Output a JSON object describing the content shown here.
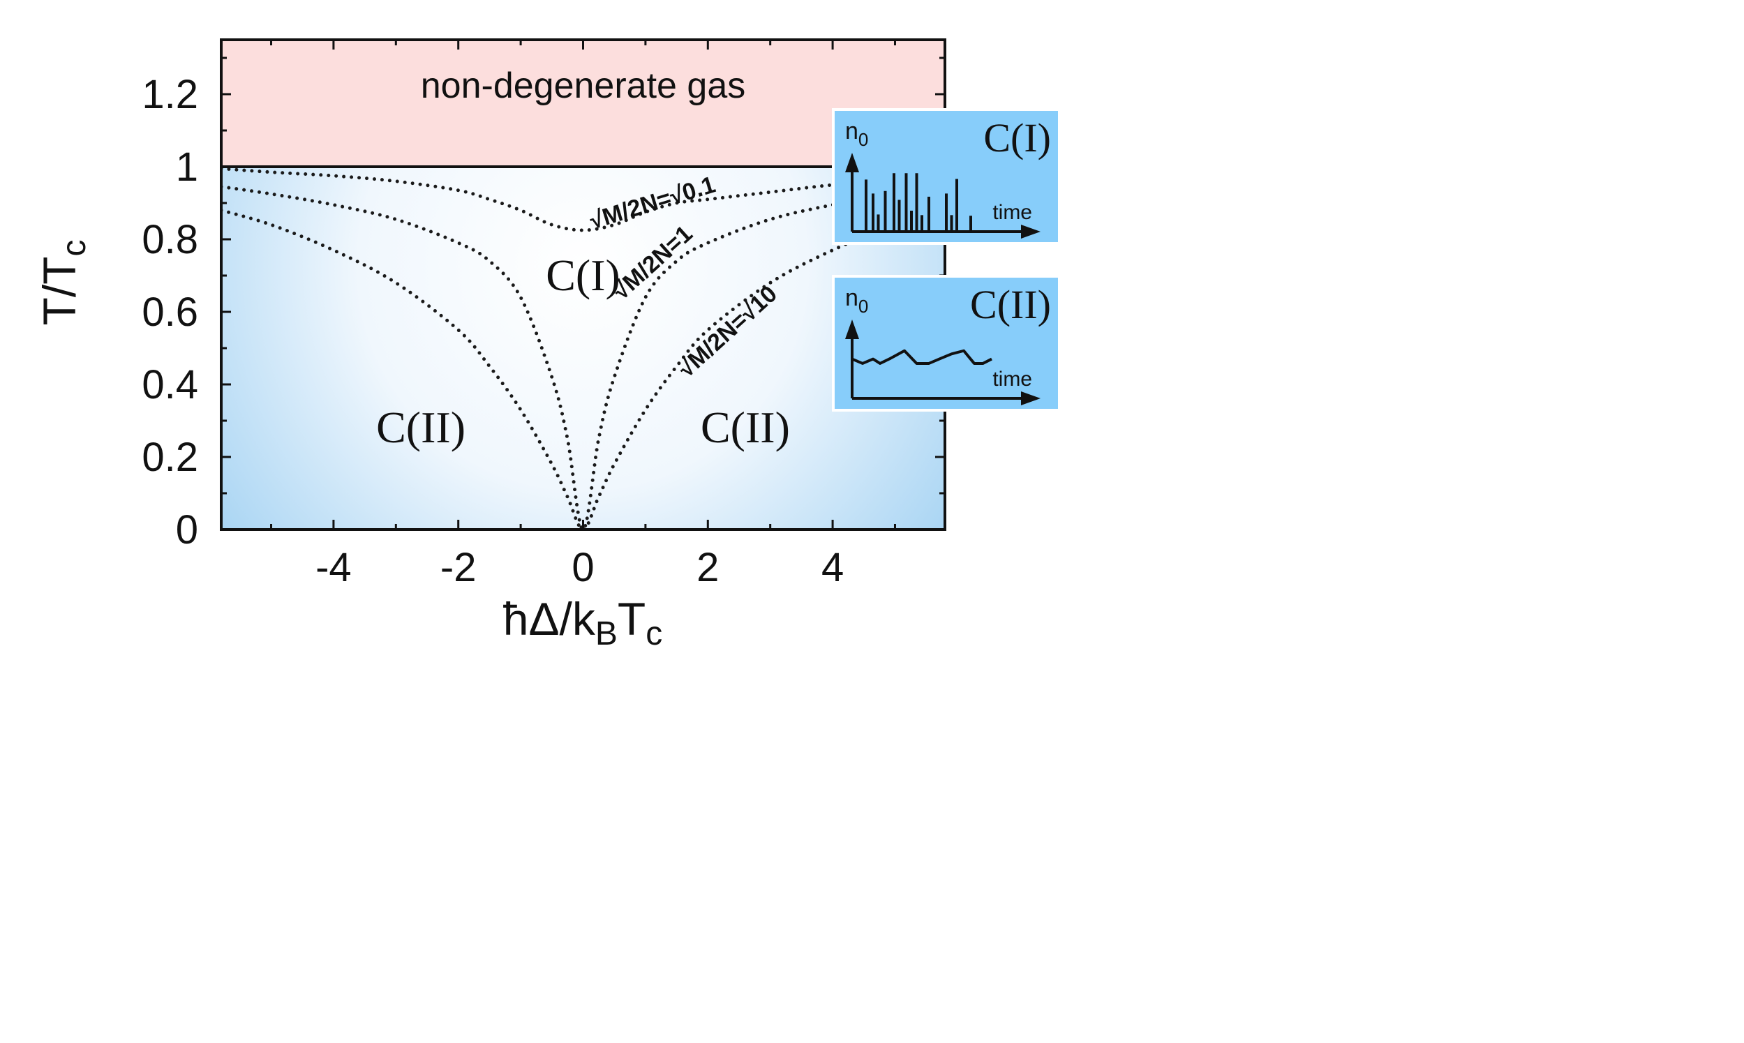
{
  "chart_data": {
    "type": "line",
    "xlabel": "ħΔ/k_BT_c",
    "ylabel": "T/T_c",
    "xlim": [
      -5.8,
      5.8
    ],
    "ylim": [
      0,
      1.35
    ],
    "xticks": [
      -4,
      -2,
      0,
      2,
      4
    ],
    "yticks": [
      0,
      0.2,
      0.4,
      0.6,
      0.8,
      1,
      1.2
    ],
    "xtick_labels": [
      "-4",
      "-2",
      "0",
      "2",
      "4"
    ],
    "ytick_labels": [
      "0",
      "0.2",
      "0.4",
      "0.6",
      "0.8",
      "1",
      "1.2"
    ],
    "boundary": {
      "y": 1,
      "style": "solid"
    },
    "regions": [
      {
        "label": "non-degenerate gas",
        "x": 0,
        "y": 1.19,
        "color": "#fcdedd"
      },
      {
        "label": "C(I)",
        "x": 0,
        "y": 0.66
      },
      {
        "label": "C(II)",
        "x": -2.6,
        "y": 0.24
      },
      {
        "label": "C(II)",
        "x": 2.6,
        "y": 0.24
      }
    ],
    "series": [
      {
        "label": "√M/2N=√0.1",
        "style": "dotted",
        "x": [
          -5.8,
          -5,
          -4,
          -3,
          -2,
          -1.5,
          -1,
          -0.5,
          0,
          0.5,
          1,
          1.5,
          2,
          3,
          4,
          5,
          5.8
        ],
        "y": [
          0.995,
          0.985,
          0.975,
          0.96,
          0.935,
          0.91,
          0.88,
          0.84,
          0.825,
          0.84,
          0.875,
          0.9,
          0.91,
          0.93,
          0.95,
          0.965,
          0.98
        ]
      },
      {
        "label": "√M/2N=1",
        "style": "dotted",
        "x": [
          -5.8,
          -5,
          -4,
          -3,
          -2,
          -1.5,
          -1,
          -0.5,
          -0.25,
          0,
          0.25,
          0.5,
          1,
          1.5,
          2,
          3,
          4,
          5,
          5.8
        ],
        "y": [
          0.945,
          0.925,
          0.895,
          0.855,
          0.79,
          0.74,
          0.64,
          0.42,
          0.25,
          0.0,
          0.25,
          0.42,
          0.64,
          0.74,
          0.79,
          0.855,
          0.895,
          0.925,
          0.945
        ]
      },
      {
        "label": "√M/2N=√10",
        "style": "dotted",
        "x": [
          -5.8,
          -5,
          -4,
          -3,
          -2,
          -1.5,
          -1,
          -0.5,
          -0.25,
          0,
          0.25,
          0.5,
          1,
          1.5,
          2,
          3,
          4,
          5,
          5.8
        ],
        "y": [
          0.88,
          0.84,
          0.77,
          0.68,
          0.55,
          0.45,
          0.33,
          0.18,
          0.09,
          0.0,
          0.09,
          0.18,
          0.33,
          0.45,
          0.55,
          0.68,
          0.77,
          0.84,
          0.88
        ]
      }
    ],
    "curve_labels": [
      {
        "text": "√M/2N=√0.1",
        "x": 1.15,
        "y": 0.88,
        "angle": -17
      },
      {
        "text": "√M/2N=1",
        "x": 1.2,
        "y": 0.72,
        "angle": -42
      },
      {
        "text": "√M/2N=√10",
        "x": 2.4,
        "y": 0.53,
        "angle": -42
      }
    ],
    "background": {
      "center_color": "#ffffff",
      "corner_color": "#3b9ddc"
    },
    "insets": [
      {
        "title": "C(I)",
        "ylabel": "n₀",
        "xlabel": "time",
        "kind": "spikes",
        "spikes": [
          0.82,
          0.6,
          0.27,
          0.64,
          0.92,
          0.5,
          0.92,
          0.33,
          0.92,
          0.26,
          0.55,
          0.6,
          0.26,
          0.83,
          0.25
        ],
        "spike_t": [
          0.08,
          0.12,
          0.15,
          0.19,
          0.24,
          0.27,
          0.31,
          0.34,
          0.37,
          0.4,
          0.44,
          0.54,
          0.57,
          0.6,
          0.68
        ]
      },
      {
        "title": "C(II)",
        "ylabel": "n₀",
        "xlabel": "time",
        "kind": "trace",
        "t": [
          0.0,
          0.06,
          0.12,
          0.16,
          0.22,
          0.3,
          0.37,
          0.44,
          0.5,
          0.57,
          0.64,
          0.7,
          0.75,
          0.8
        ],
        "v": [
          0.62,
          0.55,
          0.62,
          0.55,
          0.63,
          0.75,
          0.55,
          0.55,
          0.62,
          0.7,
          0.75,
          0.55,
          0.55,
          0.62
        ]
      }
    ],
    "inset_color": "#87cdfa"
  }
}
